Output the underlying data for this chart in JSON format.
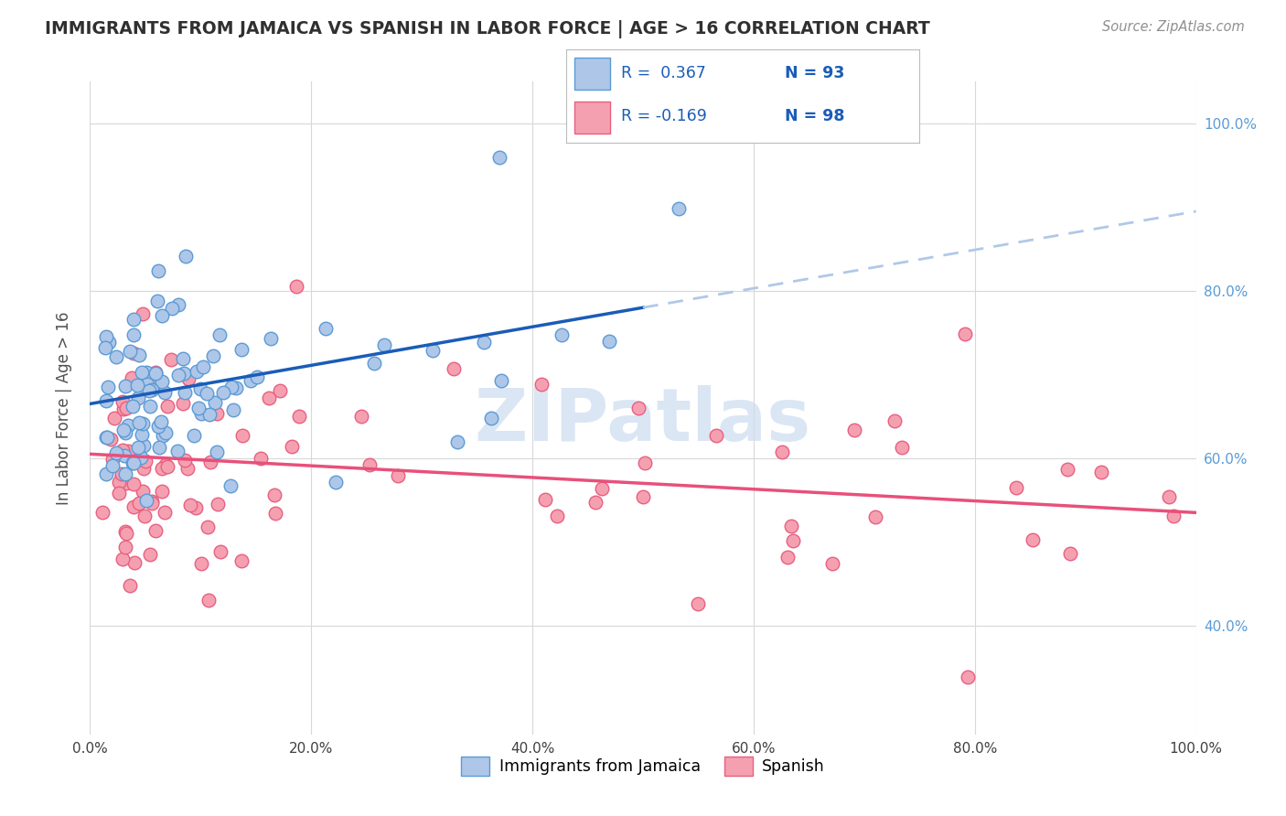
{
  "title": "IMMIGRANTS FROM JAMAICA VS SPANISH IN LABOR FORCE | AGE > 16 CORRELATION CHART",
  "source": "Source: ZipAtlas.com",
  "ylabel": "In Labor Force | Age > 16",
  "xlim": [
    0.0,
    1.0
  ],
  "ylim": [
    0.27,
    1.05
  ],
  "xtick_vals": [
    0.0,
    0.2,
    0.4,
    0.6,
    0.8,
    1.0
  ],
  "ytick_vals": [
    0.4,
    0.6,
    0.8,
    1.0
  ],
  "ytick_labels": [
    "40.0%",
    "60.0%",
    "80.0%",
    "100.0%"
  ],
  "xtick_labels": [
    "0.0%",
    "20.0%",
    "40.0%",
    "60.0%",
    "80.0%",
    "100.0%"
  ],
  "jamaica_color": "#aec6e8",
  "spanish_color": "#f4a0b0",
  "jamaica_edge": "#5b9bd5",
  "spanish_edge": "#e86080",
  "trend1_color": "#1a5cb8",
  "trend2_color": "#e8507a",
  "trend1_ext_color": "#b0c8e8",
  "background_color": "#ffffff",
  "grid_color": "#d8d8d8",
  "title_color": "#303030",
  "right_tick_color": "#5b9bd5",
  "watermark_color": "#ccdcf0",
  "legend_r1_text": "R =  0.367",
  "legend_n1_text": "N = 93",
  "legend_r2_text": "R = -0.169",
  "legend_n2_text": "N = 98",
  "legend1_color": "#aec6e8",
  "legend1_edge": "#5b9bd5",
  "legend2_color": "#f4a0b0",
  "legend2_edge": "#e86080",
  "trend_solid_end": 0.5,
  "spa_trend_start_y": 0.605,
  "spa_trend_end_y": 0.535,
  "jam_trend_start_y": 0.665,
  "jam_trend_end_y": 0.78
}
